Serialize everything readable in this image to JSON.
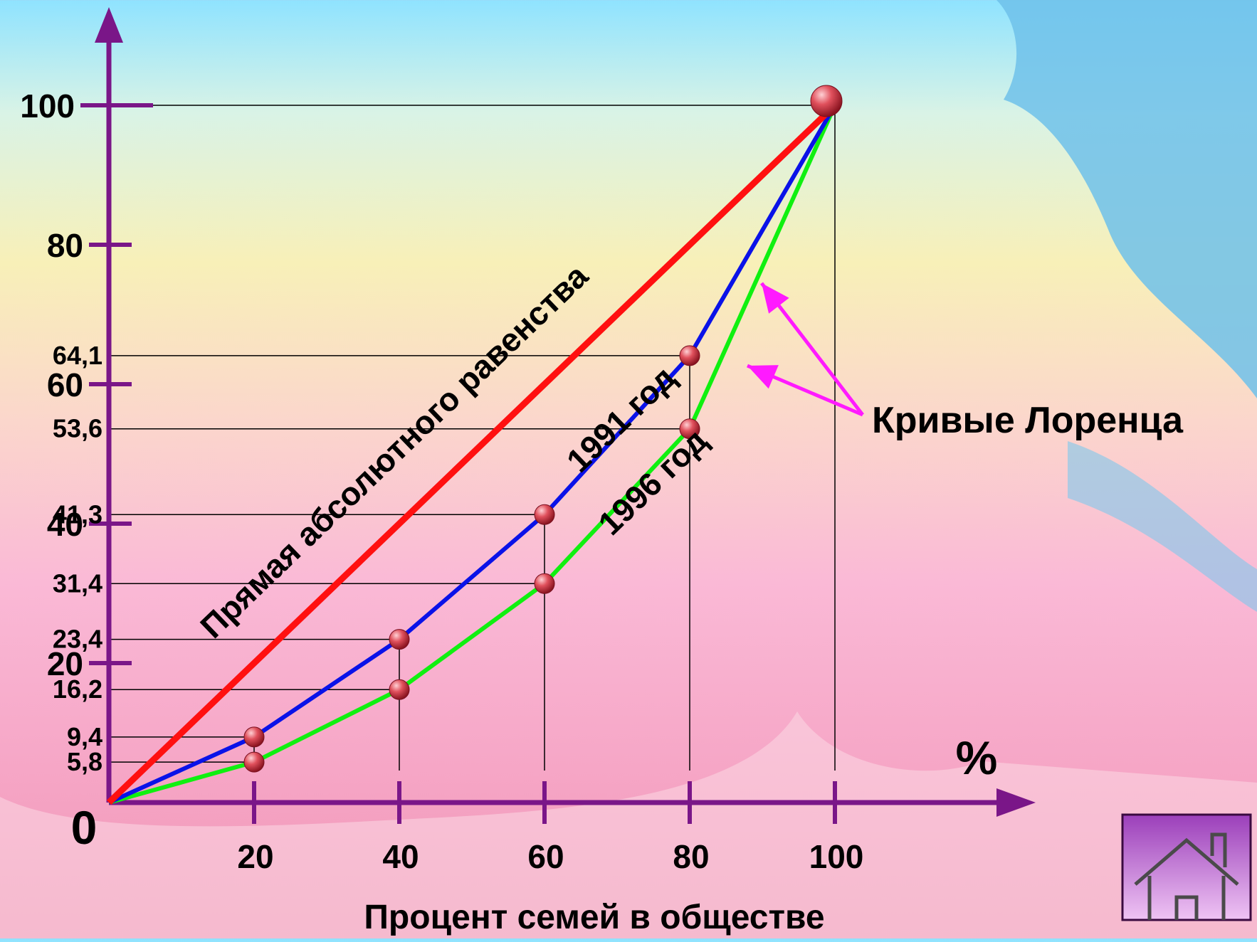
{
  "chart_data": {
    "type": "line",
    "xlabel": "Процент семей в обществе",
    "x_unit": "%",
    "origin_label": "0",
    "xlim": [
      0,
      100
    ],
    "ylim": [
      0,
      100
    ],
    "x_ticks": [
      "20",
      "40",
      "60",
      "80",
      "100"
    ],
    "y_ticks": [
      "20",
      "40",
      "60",
      "80",
      "100"
    ],
    "y_value_labels": [
      "5,8",
      "9,4",
      "16,2",
      "23,4",
      "31,4",
      "41,3",
      "53,6",
      "64,1"
    ],
    "series": [
      {
        "name": "Прямая абсолютного равенства",
        "color": "#ff1010",
        "x": [
          0,
          100
        ],
        "y": [
          0,
          100
        ]
      },
      {
        "name": "1991 год",
        "color": "#0a12e8",
        "x": [
          0,
          20,
          40,
          60,
          80,
          100
        ],
        "y": [
          0,
          9.4,
          23.4,
          41.3,
          64.1,
          100
        ]
      },
      {
        "name": "1996 год",
        "color": "#10f010",
        "x": [
          0,
          20,
          40,
          60,
          80,
          100
        ],
        "y": [
          0,
          5.8,
          16.2,
          31.4,
          53.6,
          100
        ]
      }
    ],
    "annotation": "Кривые Лоренца",
    "grid": false
  },
  "colors": {
    "axis": "#7a1688",
    "guide_lines": "#000000",
    "arrow": "#ff1aff",
    "marker": "#d83a4a"
  },
  "home_button": {
    "icon": "home-icon"
  }
}
